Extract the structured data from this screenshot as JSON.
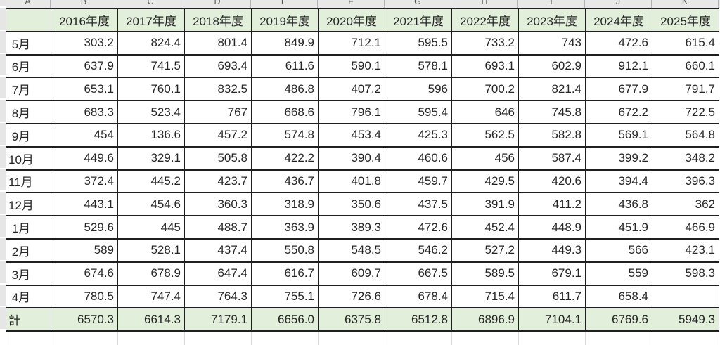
{
  "spreadsheet": {
    "column_letters": [
      "A",
      "B",
      "C",
      "D",
      "E",
      "F",
      "G",
      "H",
      "I",
      "J",
      "K"
    ],
    "corner_cell": "",
    "year_headers": [
      "2016年度",
      "2017年度",
      "2018年度",
      "2019年度",
      "2020年度",
      "2021年度",
      "2022年度",
      "2023年度",
      "2024年度",
      "2025年度"
    ],
    "month_rows": [
      {
        "label": " 5月",
        "values": [
          "303.2",
          "824.4",
          "801.4",
          "849.9",
          "712.1",
          "595.5",
          "733.2",
          "743",
          "472.6",
          "615.4"
        ]
      },
      {
        "label": " 6月",
        "values": [
          "637.9",
          "741.5",
          "693.4",
          "611.6",
          "590.1",
          "578.1",
          "693.1",
          "602.9",
          "912.1",
          "660.1"
        ]
      },
      {
        "label": " 7月",
        "values": [
          "653.1",
          "760.1",
          "832.5",
          "486.8",
          "407.2",
          "596",
          "700.2",
          "821.4",
          "677.9",
          "791.7"
        ]
      },
      {
        "label": " 8月",
        "values": [
          "683.3",
          "523.4",
          "767",
          "668.6",
          "796.1",
          "595.4",
          "646",
          "745.8",
          "672.2",
          "722.5"
        ]
      },
      {
        "label": " 9月",
        "values": [
          "454",
          "136.6",
          "457.2",
          "574.8",
          "453.4",
          "425.3",
          "562.5",
          "582.8",
          "569.1",
          "564.8"
        ]
      },
      {
        "label": "10月",
        "values": [
          "449.6",
          "329.1",
          "505.8",
          "422.2",
          "390.4",
          "460.6",
          "456",
          "587.4",
          "399.2",
          "348.2"
        ]
      },
      {
        "label": "11月",
        "values": [
          "372.4",
          "445.2",
          "423.7",
          "436.7",
          "401.8",
          "459.7",
          "429.5",
          "420.6",
          "394.4",
          "396.3"
        ]
      },
      {
        "label": "12月",
        "values": [
          "443.1",
          "454.6",
          "360.3",
          "318.9",
          "350.6",
          "437.5",
          "391.9",
          "411.2",
          "436.8",
          "362"
        ]
      },
      {
        "label": " 1月",
        "values": [
          "529.6",
          "445",
          "488.7",
          "363.9",
          "389.3",
          "472.6",
          "452.4",
          "448.9",
          "451.9",
          "466.9"
        ]
      },
      {
        "label": " 2月",
        "values": [
          "589",
          "528.1",
          "437.4",
          "550.8",
          "548.5",
          "546.2",
          "527.2",
          "449.3",
          "566",
          "423.1"
        ]
      },
      {
        "label": " 3月",
        "values": [
          "674.6",
          "678.9",
          "647.4",
          "616.7",
          "609.7",
          "667.5",
          "589.5",
          "679.1",
          "559",
          "598.3"
        ]
      },
      {
        "label": " 4月",
        "values": [
          "780.5",
          "747.4",
          "764.3",
          "755.1",
          "726.6",
          "678.4",
          "715.4",
          "611.7",
          "658.4",
          ""
        ]
      }
    ],
    "total_row": {
      "label": "計",
      "values": [
        "6570.3",
        "6614.3",
        "7179.1",
        "6656.0",
        "6375.8",
        "6512.8",
        "6896.9",
        "7104.1",
        "6769.6",
        "5949.3"
      ]
    },
    "colors": {
      "header_fill": "#e2efda",
      "total_fill": "#e2efda",
      "grid_line": "#1f1f1f",
      "gutter_fill": "#e7e6e6",
      "letter_text": "#595959",
      "cell_text": "#262626"
    }
  }
}
